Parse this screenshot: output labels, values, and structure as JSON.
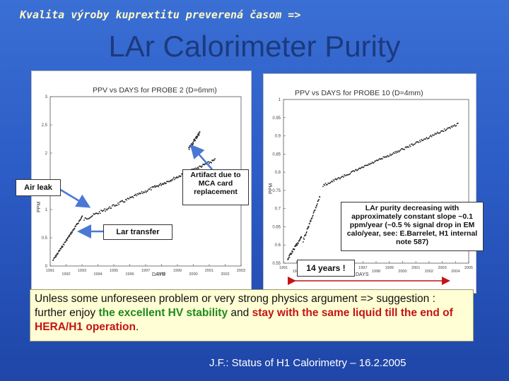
{
  "header": {
    "subtitle": "Kvalita výroby kuprextitu preverená časom =>",
    "title": "LAr Calorimeter Purity"
  },
  "plots": [
    {
      "title": "PPV vs DAYS for PROBE 2 (D=6mm)",
      "ylabel": "PPM",
      "xlabel": "DAYS",
      "y_ticks": [
        "3",
        "2.5",
        "2",
        "1.5",
        "1",
        "0.5",
        "0"
      ],
      "x_ticks": [
        "1991",
        "1992",
        "1993",
        "1994",
        "1995",
        "1996",
        "1997",
        "1998",
        "1999",
        "2000",
        "2001",
        "2002",
        "2003"
      ]
    },
    {
      "title": "PPV vs DAYS for PROBE 10 (D=4mm)",
      "ylabel": "PPM",
      "xlabel": "DAYS",
      "y_ticks": [
        "1",
        "0.95",
        "0.9",
        "0.85",
        "0.8",
        "0.75",
        "0.7",
        "0.65",
        "0.6",
        "0.55"
      ],
      "x_ticks": [
        "1991",
        "1992",
        "1993",
        "1994",
        "1995",
        "1996",
        "1997",
        "1998",
        "1999",
        "2000",
        "2001",
        "2002",
        "2003",
        "2004",
        "2005"
      ]
    }
  ],
  "callouts": {
    "air_leak": "Air leak",
    "lar_transfer": "Lar transfer",
    "artifact": "Artifact due to MCA card replacement",
    "purity_note": "LAr purity decreasing with approximately constant slope ~0.1 ppm/year (~0.5 % signal drop in EM calo/year, see: E.Barrelet, H1 internal note 587)",
    "years": "14 years !"
  },
  "summary": {
    "part1": "Unless some unforeseen problem or very strong physics argument => suggestion : further enjoy ",
    "green": "the excellent HV stability",
    "part2": " and ",
    "red": "stay with the same liquid till the end of HERA/H1 operation",
    "part3": "."
  },
  "footer": "J.F.: Status of H1 Calorimetry – 16.2.2005",
  "colors": {
    "background": "#2c5cc6",
    "title": "#1c3a7e",
    "subtitle": "#fff8c8",
    "arrow": "#4a78d4",
    "green": "#1e8a1e",
    "red": "#c41414"
  }
}
